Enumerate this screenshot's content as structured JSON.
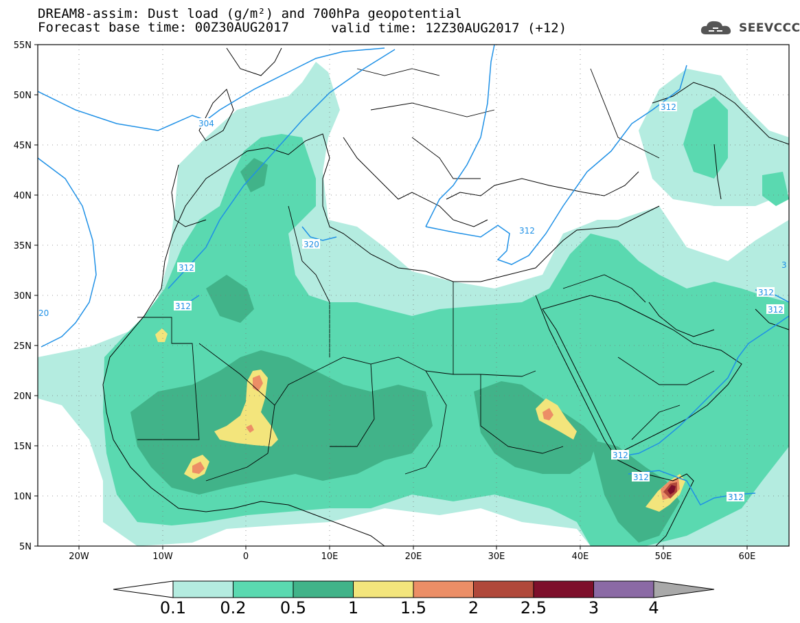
{
  "title": {
    "line1": "DREAM8-assim: Dust load (g/m²) and 700hPa geopotential",
    "line2_base": "Forecast base time: 00Z30AUG2017",
    "line2_valid": "valid time: 12Z30AUG2017 (+12)"
  },
  "logo": {
    "text": "SEEVCCC",
    "icon": "cloud-icon"
  },
  "axes": {
    "lon_ticks": [
      "20W",
      "10W",
      "0",
      "10E",
      "20E",
      "30E",
      "40E",
      "50E",
      "60E"
    ],
    "lat_ticks": [
      "55N",
      "50N",
      "45N",
      "40N",
      "35N",
      "30N",
      "25N",
      "20N",
      "15N",
      "10N",
      "5N"
    ],
    "lon_range": [
      -25,
      65
    ],
    "lat_range": [
      5,
      55
    ]
  },
  "contour_labels": [
    "304",
    "312",
    "312",
    "312",
    "312",
    "320",
    "312",
    "312",
    "312",
    "312",
    "312",
    "312",
    "20",
    "3"
  ],
  "colorbar": {
    "labels": [
      "0.1",
      "0.2",
      "0.5",
      "1",
      "1.5",
      "2",
      "2.5",
      "3",
      "4"
    ],
    "colors": [
      "#b4ece0",
      "#5ad9b0",
      "#41b389",
      "#f3e57c",
      "#ec8e66",
      "#b0483a",
      "#7d0f2b",
      "#8b6aa5"
    ],
    "under_color": "#ffffff",
    "over_color": "#a9a9a9"
  },
  "style": {
    "contour_color": "#1e90e6",
    "land_color": "#ffffff"
  }
}
